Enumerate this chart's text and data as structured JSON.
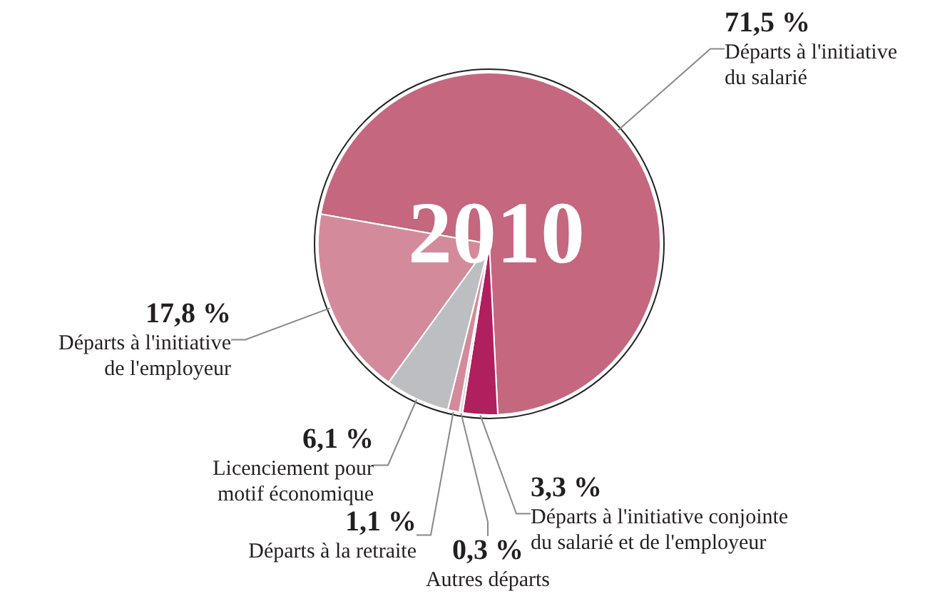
{
  "chart_data": {
    "type": "pie",
    "title": "2010",
    "categories": [
      "Départs à l'initiative du salarié",
      "Départs à l'initiative conjointe du salarié et de l'employeur",
      "Autres départs",
      "Départs à la retraite",
      "Licenciement pour motif économique",
      "Départs à l'initiative de l'employeur"
    ],
    "values": [
      71.5,
      3.3,
      0.3,
      1.1,
      6.1,
      17.8
    ],
    "value_labels": [
      "71,5 %",
      "3,3 %",
      "0,3 %",
      "1,1 %",
      "6,1 %",
      "17,8 %"
    ],
    "colors": [
      "#c4677f",
      "#b01f5e",
      "#d9d9dc",
      "#d48a9a",
      "#bdbec2",
      "#d38b9b"
    ],
    "legend": false
  }
}
